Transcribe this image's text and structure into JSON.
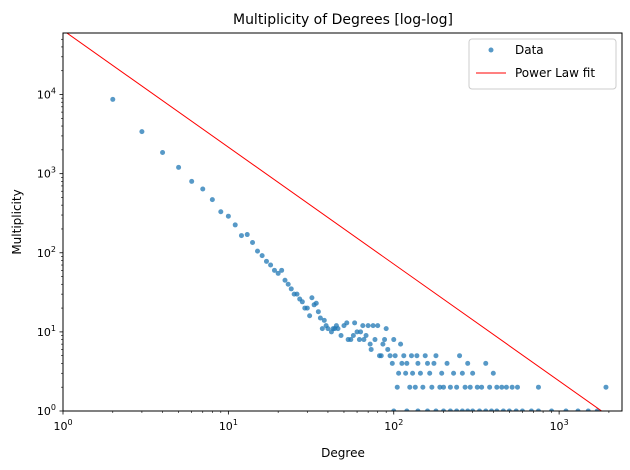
{
  "chart_data": {
    "type": "scatter",
    "title": "Multiplicity of Degrees [log-log]",
    "xlabel": "Degree",
    "ylabel": "Multiplicity",
    "xscale": "log",
    "yscale": "log",
    "xlim": [
      1,
      2400
    ],
    "ylim": [
      1,
      60000
    ],
    "x_ticks": [
      {
        "value": 1,
        "base": "10",
        "exp": "0"
      },
      {
        "value": 10,
        "base": "10",
        "exp": "1"
      },
      {
        "value": 100,
        "base": "10",
        "exp": "2"
      },
      {
        "value": 1000,
        "base": "10",
        "exp": "3"
      }
    ],
    "y_ticks": [
      {
        "value": 1,
        "base": "10",
        "exp": "0"
      },
      {
        "value": 10,
        "base": "10",
        "exp": "1"
      },
      {
        "value": 100,
        "base": "10",
        "exp": "2"
      },
      {
        "value": 1000,
        "base": "10",
        "exp": "3"
      },
      {
        "value": 10000,
        "base": "10",
        "exp": "4"
      }
    ],
    "grid": false,
    "legend_position": "top-right",
    "series": [
      {
        "name": "Data",
        "kind": "scatter",
        "color": "#1f77b4",
        "points": [
          [
            2,
            8700
          ],
          [
            3,
            3400
          ],
          [
            4,
            1850
          ],
          [
            5,
            1200
          ],
          [
            6,
            800
          ],
          [
            7,
            640
          ],
          [
            8,
            470
          ],
          [
            9,
            330
          ],
          [
            10,
            290
          ],
          [
            11,
            225
          ],
          [
            12,
            165
          ],
          [
            13,
            170
          ],
          [
            14,
            135
          ],
          [
            15,
            105
          ],
          [
            16,
            92
          ],
          [
            17,
            78
          ],
          [
            18,
            70
          ],
          [
            19,
            60
          ],
          [
            20,
            55
          ],
          [
            21,
            60
          ],
          [
            22,
            45
          ],
          [
            23,
            40
          ],
          [
            24,
            35
          ],
          [
            25,
            30
          ],
          [
            26,
            30
          ],
          [
            27,
            26
          ],
          [
            28,
            24
          ],
          [
            29,
            20
          ],
          [
            30,
            20
          ],
          [
            31,
            16
          ],
          [
            32,
            27
          ],
          [
            33,
            22
          ],
          [
            34,
            23
          ],
          [
            35,
            18
          ],
          [
            36,
            15
          ],
          [
            37,
            11
          ],
          [
            38,
            14
          ],
          [
            39,
            12
          ],
          [
            40,
            11
          ],
          [
            42,
            10
          ],
          [
            43,
            11
          ],
          [
            44,
            11
          ],
          [
            45,
            12
          ],
          [
            46,
            11
          ],
          [
            48,
            9
          ],
          [
            50,
            12
          ],
          [
            52,
            13
          ],
          [
            53,
            8
          ],
          [
            55,
            8
          ],
          [
            57,
            9
          ],
          [
            58,
            13
          ],
          [
            60,
            10
          ],
          [
            62,
            8
          ],
          [
            63,
            10
          ],
          [
            65,
            12
          ],
          [
            66,
            8
          ],
          [
            68,
            9
          ],
          [
            70,
            12
          ],
          [
            72,
            7
          ],
          [
            73,
            6
          ],
          [
            75,
            12
          ],
          [
            77,
            8
          ],
          [
            80,
            12
          ],
          [
            82,
            5
          ],
          [
            84,
            5
          ],
          [
            86,
            7
          ],
          [
            88,
            8
          ],
          [
            90,
            11
          ],
          [
            92,
            6
          ],
          [
            95,
            5
          ],
          [
            98,
            4
          ],
          [
            100,
            8
          ],
          [
            102,
            5
          ],
          [
            105,
            2
          ],
          [
            107,
            3
          ],
          [
            110,
            7
          ],
          [
            112,
            4
          ],
          [
            115,
            5
          ],
          [
            118,
            3
          ],
          [
            120,
            4
          ],
          [
            125,
            2
          ],
          [
            128,
            5
          ],
          [
            130,
            3
          ],
          [
            135,
            2
          ],
          [
            138,
            5
          ],
          [
            140,
            4
          ],
          [
            145,
            3
          ],
          [
            150,
            2
          ],
          [
            155,
            5
          ],
          [
            160,
            4
          ],
          [
            165,
            3
          ],
          [
            170,
            2
          ],
          [
            175,
            4
          ],
          [
            180,
            5
          ],
          [
            190,
            2
          ],
          [
            195,
            3
          ],
          [
            200,
            2
          ],
          [
            210,
            4
          ],
          [
            220,
            2
          ],
          [
            230,
            3
          ],
          [
            240,
            2
          ],
          [
            250,
            5
          ],
          [
            260,
            3
          ],
          [
            270,
            2
          ],
          [
            280,
            4
          ],
          [
            290,
            2
          ],
          [
            300,
            3
          ],
          [
            320,
            2
          ],
          [
            340,
            2
          ],
          [
            360,
            4
          ],
          [
            380,
            2
          ],
          [
            400,
            3
          ],
          [
            420,
            2
          ],
          [
            450,
            2
          ],
          [
            480,
            2
          ],
          [
            520,
            2
          ],
          [
            560,
            2
          ],
          [
            750,
            2
          ],
          [
            1920,
            2
          ],
          [
            100,
            1
          ],
          [
            120,
            1
          ],
          [
            140,
            1
          ],
          [
            160,
            1
          ],
          [
            180,
            1
          ],
          [
            200,
            1
          ],
          [
            220,
            1
          ],
          [
            240,
            1
          ],
          [
            260,
            1
          ],
          [
            280,
            1
          ],
          [
            300,
            1
          ],
          [
            330,
            1
          ],
          [
            360,
            1
          ],
          [
            390,
            1
          ],
          [
            420,
            1
          ],
          [
            460,
            1
          ],
          [
            500,
            1
          ],
          [
            550,
            1
          ],
          [
            600,
            1
          ],
          [
            680,
            1
          ],
          [
            750,
            1
          ],
          [
            900,
            1
          ],
          [
            1100,
            1
          ],
          [
            1300,
            1
          ],
          [
            1500,
            1
          ],
          [
            1700,
            1
          ]
        ]
      },
      {
        "name": "Power Law fit",
        "kind": "line",
        "color": "#ff0000",
        "points": [
          [
            1,
            65000
          ],
          [
            2000,
            0.86
          ]
        ]
      }
    ]
  }
}
